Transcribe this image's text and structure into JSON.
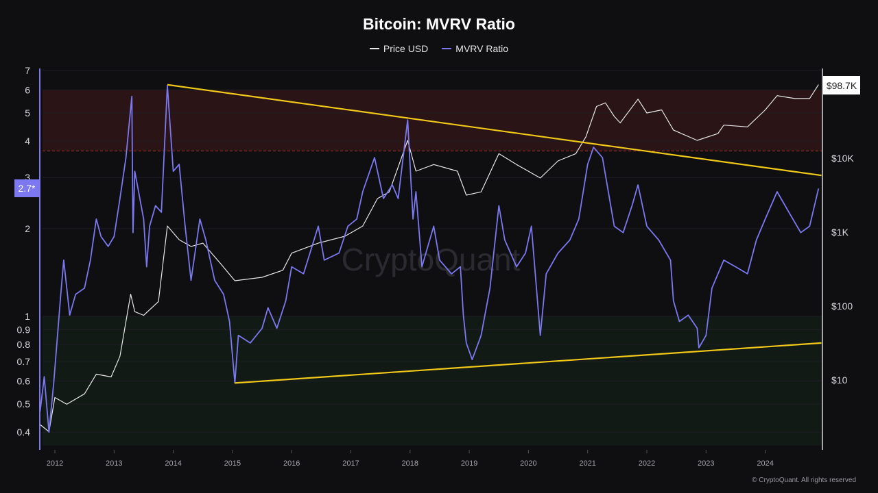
{
  "chart_data": {
    "type": "line",
    "title": "Bitcoin: MVRV Ratio",
    "watermark": "CryptoQuant",
    "copyright": "© CryptoQuant. All rights reserved",
    "legend_position": "top-center",
    "grid": true,
    "x_ticks": [
      "2012",
      "2013",
      "2014",
      "2015",
      "2016",
      "2017",
      "2018",
      "2019",
      "2020",
      "2021",
      "2022",
      "2023",
      "2024"
    ],
    "xlim": [
      2011.75,
      2024.95
    ],
    "left_axis": {
      "scale": "log",
      "ylim": [
        0.36,
        7.2
      ],
      "ticks": [
        "0.4",
        "0.5",
        "0.6",
        "0.7",
        "0.8",
        "0.9",
        "1",
        "2",
        "3",
        "4",
        "5",
        "6",
        "7"
      ],
      "current_label": "2.7*"
    },
    "right_axis": {
      "scale": "log",
      "ylim": [
        1.2,
        200000
      ],
      "ticks": [
        {
          "v": 10,
          "label": "$10"
        },
        {
          "v": 100,
          "label": "$100"
        },
        {
          "v": 1000,
          "label": "$1K"
        },
        {
          "v": 10000,
          "label": "$10K"
        }
      ],
      "current_label": "$98.7K"
    },
    "zones": [
      {
        "name": "overvalued",
        "from": 3.7,
        "to": 6.0,
        "color": "#2a1416",
        "line_color": "#b3322e"
      },
      {
        "name": "undervalued",
        "from": 0.36,
        "to": 1.0,
        "color": "#121a16",
        "line_color": "#2f7a35"
      }
    ],
    "trendlines": [
      {
        "color": "#f2c919",
        "from": [
          2013.9,
          6.25
        ],
        "to": [
          2024.95,
          3.05
        ]
      },
      {
        "color": "#f2c919",
        "from": [
          2015.04,
          0.59
        ],
        "to": [
          2024.95,
          0.81
        ]
      }
    ],
    "series": [
      {
        "name": "Price USD",
        "color": "#e8e8e8",
        "axis": "right",
        "points": [
          [
            2011.75,
            2.5
          ],
          [
            2011.9,
            2.0
          ],
          [
            2012.0,
            5.8
          ],
          [
            2012.2,
            4.7
          ],
          [
            2012.5,
            6.5
          ],
          [
            2012.7,
            12
          ],
          [
            2012.95,
            11
          ],
          [
            2013.1,
            21
          ],
          [
            2013.28,
            145
          ],
          [
            2013.35,
            84
          ],
          [
            2013.5,
            75
          ],
          [
            2013.75,
            115
          ],
          [
            2013.9,
            1210
          ],
          [
            2014.1,
            790
          ],
          [
            2014.3,
            640
          ],
          [
            2014.5,
            710
          ],
          [
            2014.8,
            375
          ],
          [
            2015.04,
            220
          ],
          [
            2015.5,
            245
          ],
          [
            2015.85,
            305
          ],
          [
            2016.0,
            520
          ],
          [
            2016.45,
            710
          ],
          [
            2016.9,
            880
          ],
          [
            2017.2,
            1210
          ],
          [
            2017.45,
            2840
          ],
          [
            2017.65,
            3500
          ],
          [
            2017.96,
            17400
          ],
          [
            2018.1,
            6670
          ],
          [
            2018.4,
            8200
          ],
          [
            2018.8,
            6670
          ],
          [
            2018.95,
            3160
          ],
          [
            2019.2,
            3500
          ],
          [
            2019.5,
            11500
          ],
          [
            2019.8,
            8200
          ],
          [
            2020.2,
            5390
          ],
          [
            2020.5,
            9180
          ],
          [
            2020.8,
            11500
          ],
          [
            2020.97,
            19400
          ],
          [
            2021.15,
            50000
          ],
          [
            2021.3,
            56000
          ],
          [
            2021.45,
            36700
          ],
          [
            2021.55,
            30000
          ],
          [
            2021.85,
            62800
          ],
          [
            2022.0,
            40800
          ],
          [
            2022.25,
            45000
          ],
          [
            2022.45,
            24000
          ],
          [
            2022.85,
            17400
          ],
          [
            2023.2,
            21500
          ],
          [
            2023.3,
            28000
          ],
          [
            2023.7,
            26500
          ],
          [
            2024.0,
            45000
          ],
          [
            2024.2,
            70000
          ],
          [
            2024.5,
            64000
          ],
          [
            2024.75,
            64000
          ],
          [
            2024.9,
            98700
          ]
        ]
      },
      {
        "name": "MVRV Ratio",
        "color": "#7b78f0",
        "axis": "left",
        "points": [
          [
            2011.75,
            0.47
          ],
          [
            2011.82,
            0.62
          ],
          [
            2011.9,
            0.4
          ],
          [
            2011.98,
            0.59
          ],
          [
            2012.1,
            1.19
          ],
          [
            2012.15,
            1.56
          ],
          [
            2012.25,
            1.01
          ],
          [
            2012.35,
            1.19
          ],
          [
            2012.5,
            1.25
          ],
          [
            2012.6,
            1.56
          ],
          [
            2012.7,
            2.16
          ],
          [
            2012.78,
            1.88
          ],
          [
            2012.9,
            1.74
          ],
          [
            2013.0,
            1.88
          ],
          [
            2013.1,
            2.54
          ],
          [
            2013.2,
            3.51
          ],
          [
            2013.3,
            5.7
          ],
          [
            2013.32,
            1.94
          ],
          [
            2013.35,
            3.15
          ],
          [
            2013.5,
            2.16
          ],
          [
            2013.55,
            1.48
          ],
          [
            2013.6,
            2.04
          ],
          [
            2013.7,
            2.4
          ],
          [
            2013.8,
            2.28
          ],
          [
            2013.9,
            6.2
          ],
          [
            2014.0,
            3.15
          ],
          [
            2014.1,
            3.33
          ],
          [
            2014.2,
            2.04
          ],
          [
            2014.3,
            1.33
          ],
          [
            2014.45,
            2.16
          ],
          [
            2014.55,
            1.83
          ],
          [
            2014.7,
            1.33
          ],
          [
            2014.85,
            1.19
          ],
          [
            2014.95,
            0.96
          ],
          [
            2015.04,
            0.59
          ],
          [
            2015.1,
            0.86
          ],
          [
            2015.3,
            0.81
          ],
          [
            2015.5,
            0.91
          ],
          [
            2015.6,
            1.07
          ],
          [
            2015.75,
            0.91
          ],
          [
            2015.9,
            1.13
          ],
          [
            2016.0,
            1.48
          ],
          [
            2016.2,
            1.4
          ],
          [
            2016.45,
            2.04
          ],
          [
            2016.55,
            1.56
          ],
          [
            2016.8,
            1.65
          ],
          [
            2016.95,
            2.04
          ],
          [
            2017.1,
            2.16
          ],
          [
            2017.2,
            2.68
          ],
          [
            2017.4,
            3.51
          ],
          [
            2017.55,
            2.54
          ],
          [
            2017.7,
            2.83
          ],
          [
            2017.8,
            2.54
          ],
          [
            2017.96,
            4.73
          ],
          [
            2018.05,
            2.16
          ],
          [
            2018.1,
            2.68
          ],
          [
            2018.2,
            1.48
          ],
          [
            2018.4,
            2.04
          ],
          [
            2018.5,
            1.56
          ],
          [
            2018.7,
            1.4
          ],
          [
            2018.85,
            1.48
          ],
          [
            2018.9,
            1.01
          ],
          [
            2018.95,
            0.81
          ],
          [
            2019.05,
            0.71
          ],
          [
            2019.2,
            0.86
          ],
          [
            2019.35,
            1.25
          ],
          [
            2019.5,
            2.4
          ],
          [
            2019.6,
            1.83
          ],
          [
            2019.8,
            1.48
          ],
          [
            2019.95,
            1.65
          ],
          [
            2020.05,
            2.04
          ],
          [
            2020.2,
            0.86
          ],
          [
            2020.3,
            1.4
          ],
          [
            2020.5,
            1.65
          ],
          [
            2020.7,
            1.83
          ],
          [
            2020.85,
            2.16
          ],
          [
            2021.0,
            3.33
          ],
          [
            2021.1,
            3.81
          ],
          [
            2021.25,
            3.51
          ],
          [
            2021.45,
            2.04
          ],
          [
            2021.6,
            1.94
          ],
          [
            2021.75,
            2.4
          ],
          [
            2021.85,
            2.83
          ],
          [
            2022.0,
            2.04
          ],
          [
            2022.2,
            1.83
          ],
          [
            2022.4,
            1.56
          ],
          [
            2022.45,
            1.13
          ],
          [
            2022.55,
            0.96
          ],
          [
            2022.7,
            1.01
          ],
          [
            2022.85,
            0.91
          ],
          [
            2022.88,
            0.78
          ],
          [
            2023.0,
            0.86
          ],
          [
            2023.1,
            1.25
          ],
          [
            2023.3,
            1.56
          ],
          [
            2023.5,
            1.48
          ],
          [
            2023.7,
            1.4
          ],
          [
            2023.85,
            1.83
          ],
          [
            2024.0,
            2.16
          ],
          [
            2024.2,
            2.68
          ],
          [
            2024.4,
            2.28
          ],
          [
            2024.6,
            1.94
          ],
          [
            2024.75,
            2.04
          ],
          [
            2024.9,
            2.75
          ]
        ]
      }
    ]
  }
}
